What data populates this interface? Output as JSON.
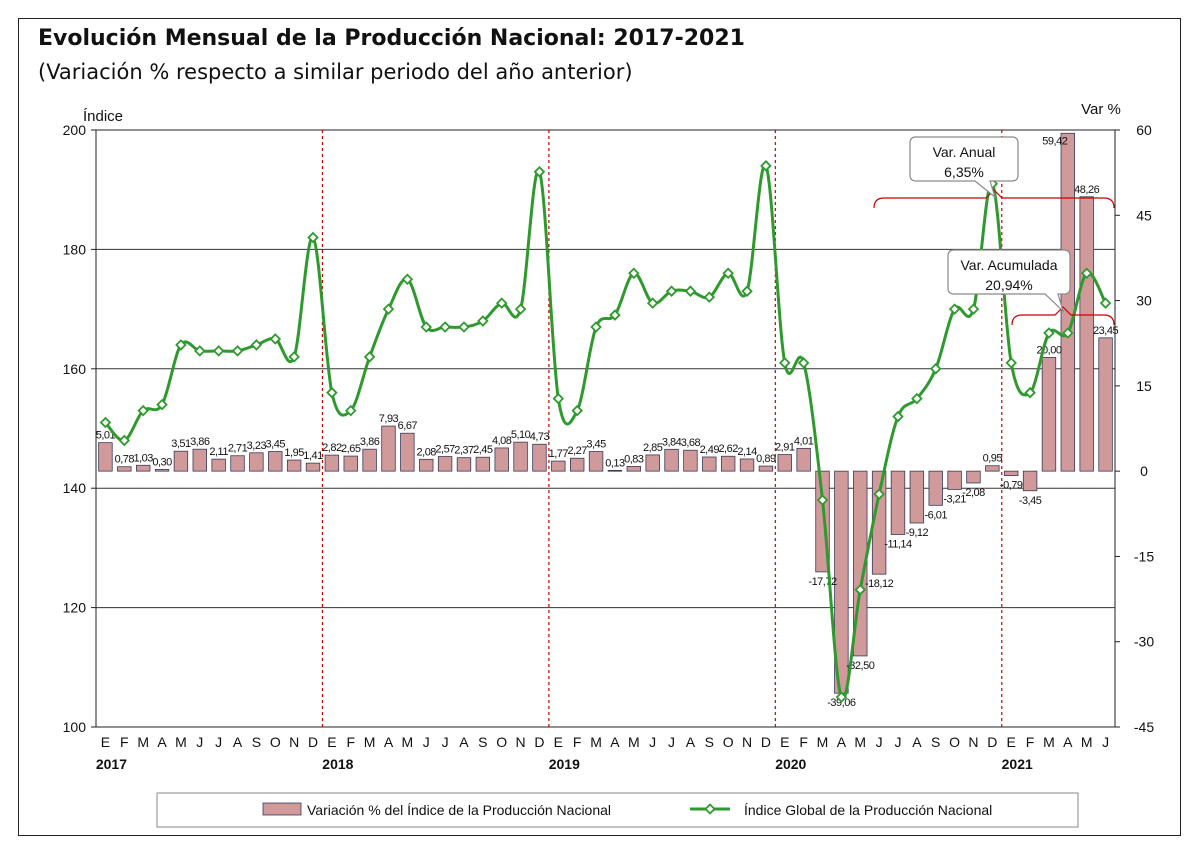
{
  "title": "Evolución Mensual de la Producción Nacional: 2017-2021",
  "subtitle": "(Variación % respecto a similar periodo del año anterior)",
  "chart_data": {
    "type": "bar",
    "combo": "bar+line",
    "left_axis_label": "Índice",
    "right_axis_label": "Var %",
    "ylim_left": [
      100,
      200
    ],
    "yticks_left": [
      100,
      120,
      140,
      160,
      180,
      200
    ],
    "ylim_right": [
      -45,
      60
    ],
    "yticks_right": [
      -45,
      -30,
      -15,
      0,
      15,
      30,
      45,
      60
    ],
    "grid": true,
    "month_labels": [
      "E",
      "F",
      "M",
      "A",
      "M",
      "J",
      "J",
      "A",
      "S",
      "O",
      "N",
      "D",
      "E",
      "F",
      "M",
      "A",
      "M",
      "J",
      "J",
      "A",
      "S",
      "O",
      "N",
      "D",
      "E",
      "F",
      "M",
      "A",
      "M",
      "J",
      "J",
      "A",
      "S",
      "O",
      "N",
      "D",
      "E",
      "F",
      "M",
      "A",
      "M",
      "J",
      "J",
      "A",
      "S",
      "O",
      "N",
      "D",
      "E",
      "F",
      "M",
      "A",
      "M",
      "J"
    ],
    "year_labels": [
      {
        "index": 0,
        "label": "2017"
      },
      {
        "index": 12,
        "label": "2018"
      },
      {
        "index": 24,
        "label": "2019"
      },
      {
        "index": 36,
        "label": "2020"
      },
      {
        "index": 48,
        "label": "2021"
      }
    ],
    "year_separators": [
      12,
      24,
      36,
      48
    ],
    "series": [
      {
        "name": "Variación % del Índice de la Producción Nacional",
        "kind": "bar",
        "axis": "right",
        "color": "#D09A9A",
        "values": [
          5.01,
          0.78,
          1.03,
          0.3,
          3.51,
          3.86,
          2.11,
          2.71,
          3.23,
          3.45,
          1.95,
          1.41,
          2.82,
          2.65,
          3.86,
          7.93,
          6.67,
          2.08,
          2.57,
          2.37,
          2.45,
          4.08,
          5.1,
          4.73,
          1.77,
          2.27,
          3.45,
          0.13,
          0.83,
          2.85,
          3.84,
          3.68,
          2.49,
          2.62,
          2.14,
          0.89,
          2.91,
          4.01,
          -17.72,
          -39.06,
          -32.5,
          -18.12,
          -11.14,
          -9.12,
          -6.01,
          -3.21,
          -2.08,
          0.95,
          -0.79,
          -3.45,
          20.0,
          59.42,
          48.26,
          23.45
        ],
        "labels": [
          "5,01",
          "0,78",
          "1,03",
          "0,30",
          "3,51",
          "3,86",
          "2,11",
          "2,71",
          "3,23",
          "3,45",
          "1,95",
          "1,41",
          "2,82",
          "2,65",
          "3,86",
          "7,93",
          "6,67",
          "2,08",
          "2,57",
          "2,37",
          "2,45",
          "4,08",
          "5,10",
          "4,73",
          "1,77",
          "2,27",
          "3,45",
          "0,13",
          "0,83",
          "2,85",
          "3,84",
          "3,68",
          "2,49",
          "2,62",
          "2,14",
          "0,89",
          "2,91",
          "4,01",
          "-17,72",
          "-39,06",
          "-32,50",
          "-18,12",
          "-11,14",
          "-9,12",
          "-6,01",
          "-3,21",
          "-2,08",
          "0,95",
          "-0,79",
          "-3,45",
          "20,00",
          "59,42",
          "48,26",
          "23,45"
        ]
      },
      {
        "name": "Índice Global de la Producción Nacional",
        "kind": "line",
        "axis": "left",
        "color": "#2E9A2E",
        "values": [
          151,
          148,
          153,
          154,
          164,
          163,
          163,
          163,
          164,
          165,
          162,
          182,
          156,
          153,
          162,
          170,
          175,
          167,
          167,
          167,
          168,
          171,
          170,
          193,
          155,
          153,
          167,
          169,
          176,
          171,
          173,
          173,
          172,
          176,
          173,
          194,
          161,
          161,
          138,
          105,
          123,
          139,
          152,
          155,
          160,
          170,
          170,
          191,
          161,
          156,
          166,
          166,
          176,
          171
        ]
      }
    ],
    "annotations": [
      {
        "title": "Var. Anual",
        "value": "6,35%"
      },
      {
        "title": "Var. Acumulada",
        "value": "20,94%"
      }
    ],
    "legend": {
      "placement": "bottom"
    }
  }
}
